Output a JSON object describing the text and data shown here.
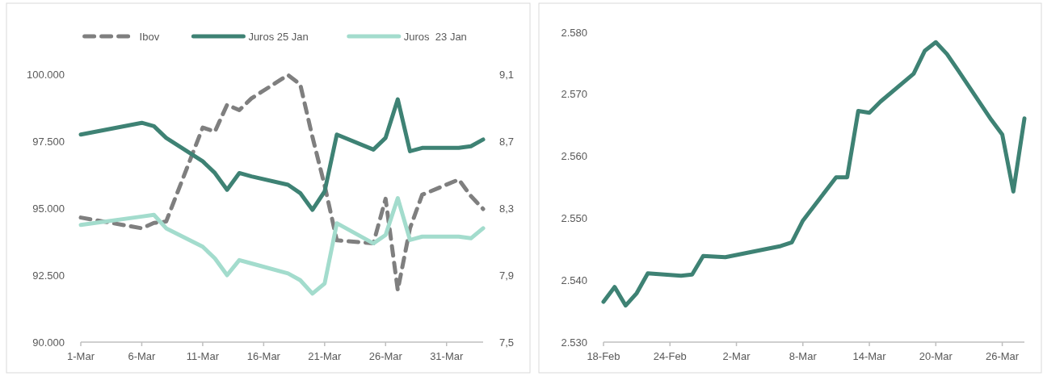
{
  "chart_data": [
    {
      "type": "line",
      "legend": "top",
      "x": [
        "--03-01",
        "--03-06",
        "--03-07",
        "--03-08",
        "--03-11",
        "--03-12",
        "--03-13",
        "--03-14",
        "--03-15",
        "--03-18",
        "--03-19",
        "--03-20",
        "--03-21",
        "--03-22",
        "--03-25",
        "--03-26",
        "--03-27",
        "--03-28",
        "--03-29",
        "--04-01",
        "--04-02",
        "--04-03"
      ],
      "series": [
        {
          "name": "Ibov",
          "color": "#7f7f7f",
          "line_style": "dashed",
          "values": [
            94650,
            94250,
            94450,
            94500,
            98010,
            97860,
            98860,
            98660,
            99100,
            99970,
            99620,
            97660,
            95850,
            93800,
            93690,
            95350,
            91940,
            94250,
            95500,
            96070,
            95450,
            94970
          ]
        },
        {
          "name": "Juros 25 Jan",
          "color": "#3e8274",
          "axis": "y2",
          "values": [
            8.74,
            8.81,
            8.79,
            8.72,
            8.58,
            8.51,
            8.41,
            8.51,
            8.49,
            8.44,
            8.39,
            8.29,
            8.4,
            8.74,
            8.65,
            8.72,
            8.95,
            8.64,
            8.66,
            8.66,
            8.67,
            8.71
          ]
        },
        {
          "name": "Juros  23 Jan",
          "color": "#a3dccd",
          "axis": "y2",
          "values": [
            8.2,
            8.25,
            8.26,
            8.18,
            8.07,
            8.0,
            7.9,
            7.99,
            7.97,
            7.91,
            7.87,
            7.79,
            7.85,
            8.21,
            8.09,
            8.14,
            8.36,
            8.11,
            8.13,
            8.13,
            8.12,
            8.18
          ]
        }
      ],
      "xlim": [
        "--03-01",
        "--04-03"
      ],
      "xticks": [
        {
          "value": "--03-01",
          "label": "1-Mar"
        },
        {
          "value": "--03-06",
          "label": "6-Mar"
        },
        {
          "value": "--03-11",
          "label": "11-Mar"
        },
        {
          "value": "--03-16",
          "label": "16-Mar"
        },
        {
          "value": "--03-21",
          "label": "21-Mar"
        },
        {
          "value": "--03-26",
          "label": "26-Mar"
        },
        {
          "value": "--03-31",
          "label": "31-Mar"
        }
      ],
      "ylim": [
        90000,
        100000
      ],
      "yticks": [
        {
          "value": 90000,
          "label": "90.000"
        },
        {
          "value": 92500,
          "label": "92.500"
        },
        {
          "value": 95000,
          "label": "95.000"
        },
        {
          "value": 97500,
          "label": "97.500"
        },
        {
          "value": 100000,
          "label": "100.000"
        }
      ],
      "y2lim": [
        7.5,
        9.1
      ],
      "y2ticks": [
        {
          "value": 7.5,
          "label": "7,5"
        },
        {
          "value": 7.9,
          "label": "7,9"
        },
        {
          "value": 8.3,
          "label": "8,3"
        },
        {
          "value": 8.7,
          "label": "8,7"
        },
        {
          "value": 9.1,
          "label": "9,1"
        }
      ]
    },
    {
      "type": "line",
      "legend": false,
      "x": [
        "--02-18",
        "--02-19",
        "--02-20",
        "--02-21",
        "--02-22",
        "--02-25",
        "--02-26",
        "--02-27",
        "--02-28",
        "--03-01",
        "--03-06",
        "--03-07",
        "--03-08",
        "--03-11",
        "--03-12",
        "--03-13",
        "--03-14",
        "--03-15",
        "--03-18",
        "--03-19",
        "--03-20",
        "--03-21",
        "--03-22",
        "--03-25",
        "--03-26",
        "--03-27",
        "--03-28"
      ],
      "series": [
        {
          "color": "#3e8274",
          "values": [
            2536.5,
            2538.9,
            2535.9,
            2537.9,
            2541.1,
            2540.7,
            2540.9,
            2543.9,
            2543.8,
            2543.7,
            2545.5,
            2546.1,
            2549.6,
            2556.6,
            2556.6,
            2567.3,
            2567.0,
            2568.8,
            2573.3,
            2577.0,
            2578.4,
            2576.5,
            2573.9,
            2565.9,
            2563.5,
            2554.3,
            2566.1
          ]
        }
      ],
      "xlim": [
        "--02-18",
        "--03-28"
      ],
      "xticks": [
        {
          "value": "--02-18",
          "label": "18-Feb"
        },
        {
          "value": "--02-24",
          "label": "24-Feb"
        },
        {
          "value": "--03-02",
          "label": "2-Mar"
        },
        {
          "value": "--03-08",
          "label": "8-Mar"
        },
        {
          "value": "--03-14",
          "label": "14-Mar"
        },
        {
          "value": "--03-20",
          "label": "20-Mar"
        },
        {
          "value": "--03-26",
          "label": "26-Mar"
        }
      ],
      "ylim": [
        2530,
        2580
      ],
      "yticks": [
        {
          "value": 2530,
          "label": "2.530"
        },
        {
          "value": 2540,
          "label": "2.540"
        },
        {
          "value": 2550,
          "label": "2.550"
        },
        {
          "value": 2560,
          "label": "2.560"
        },
        {
          "value": 2570,
          "label": "2.570"
        },
        {
          "value": 2580,
          "label": "2.580"
        }
      ]
    }
  ]
}
